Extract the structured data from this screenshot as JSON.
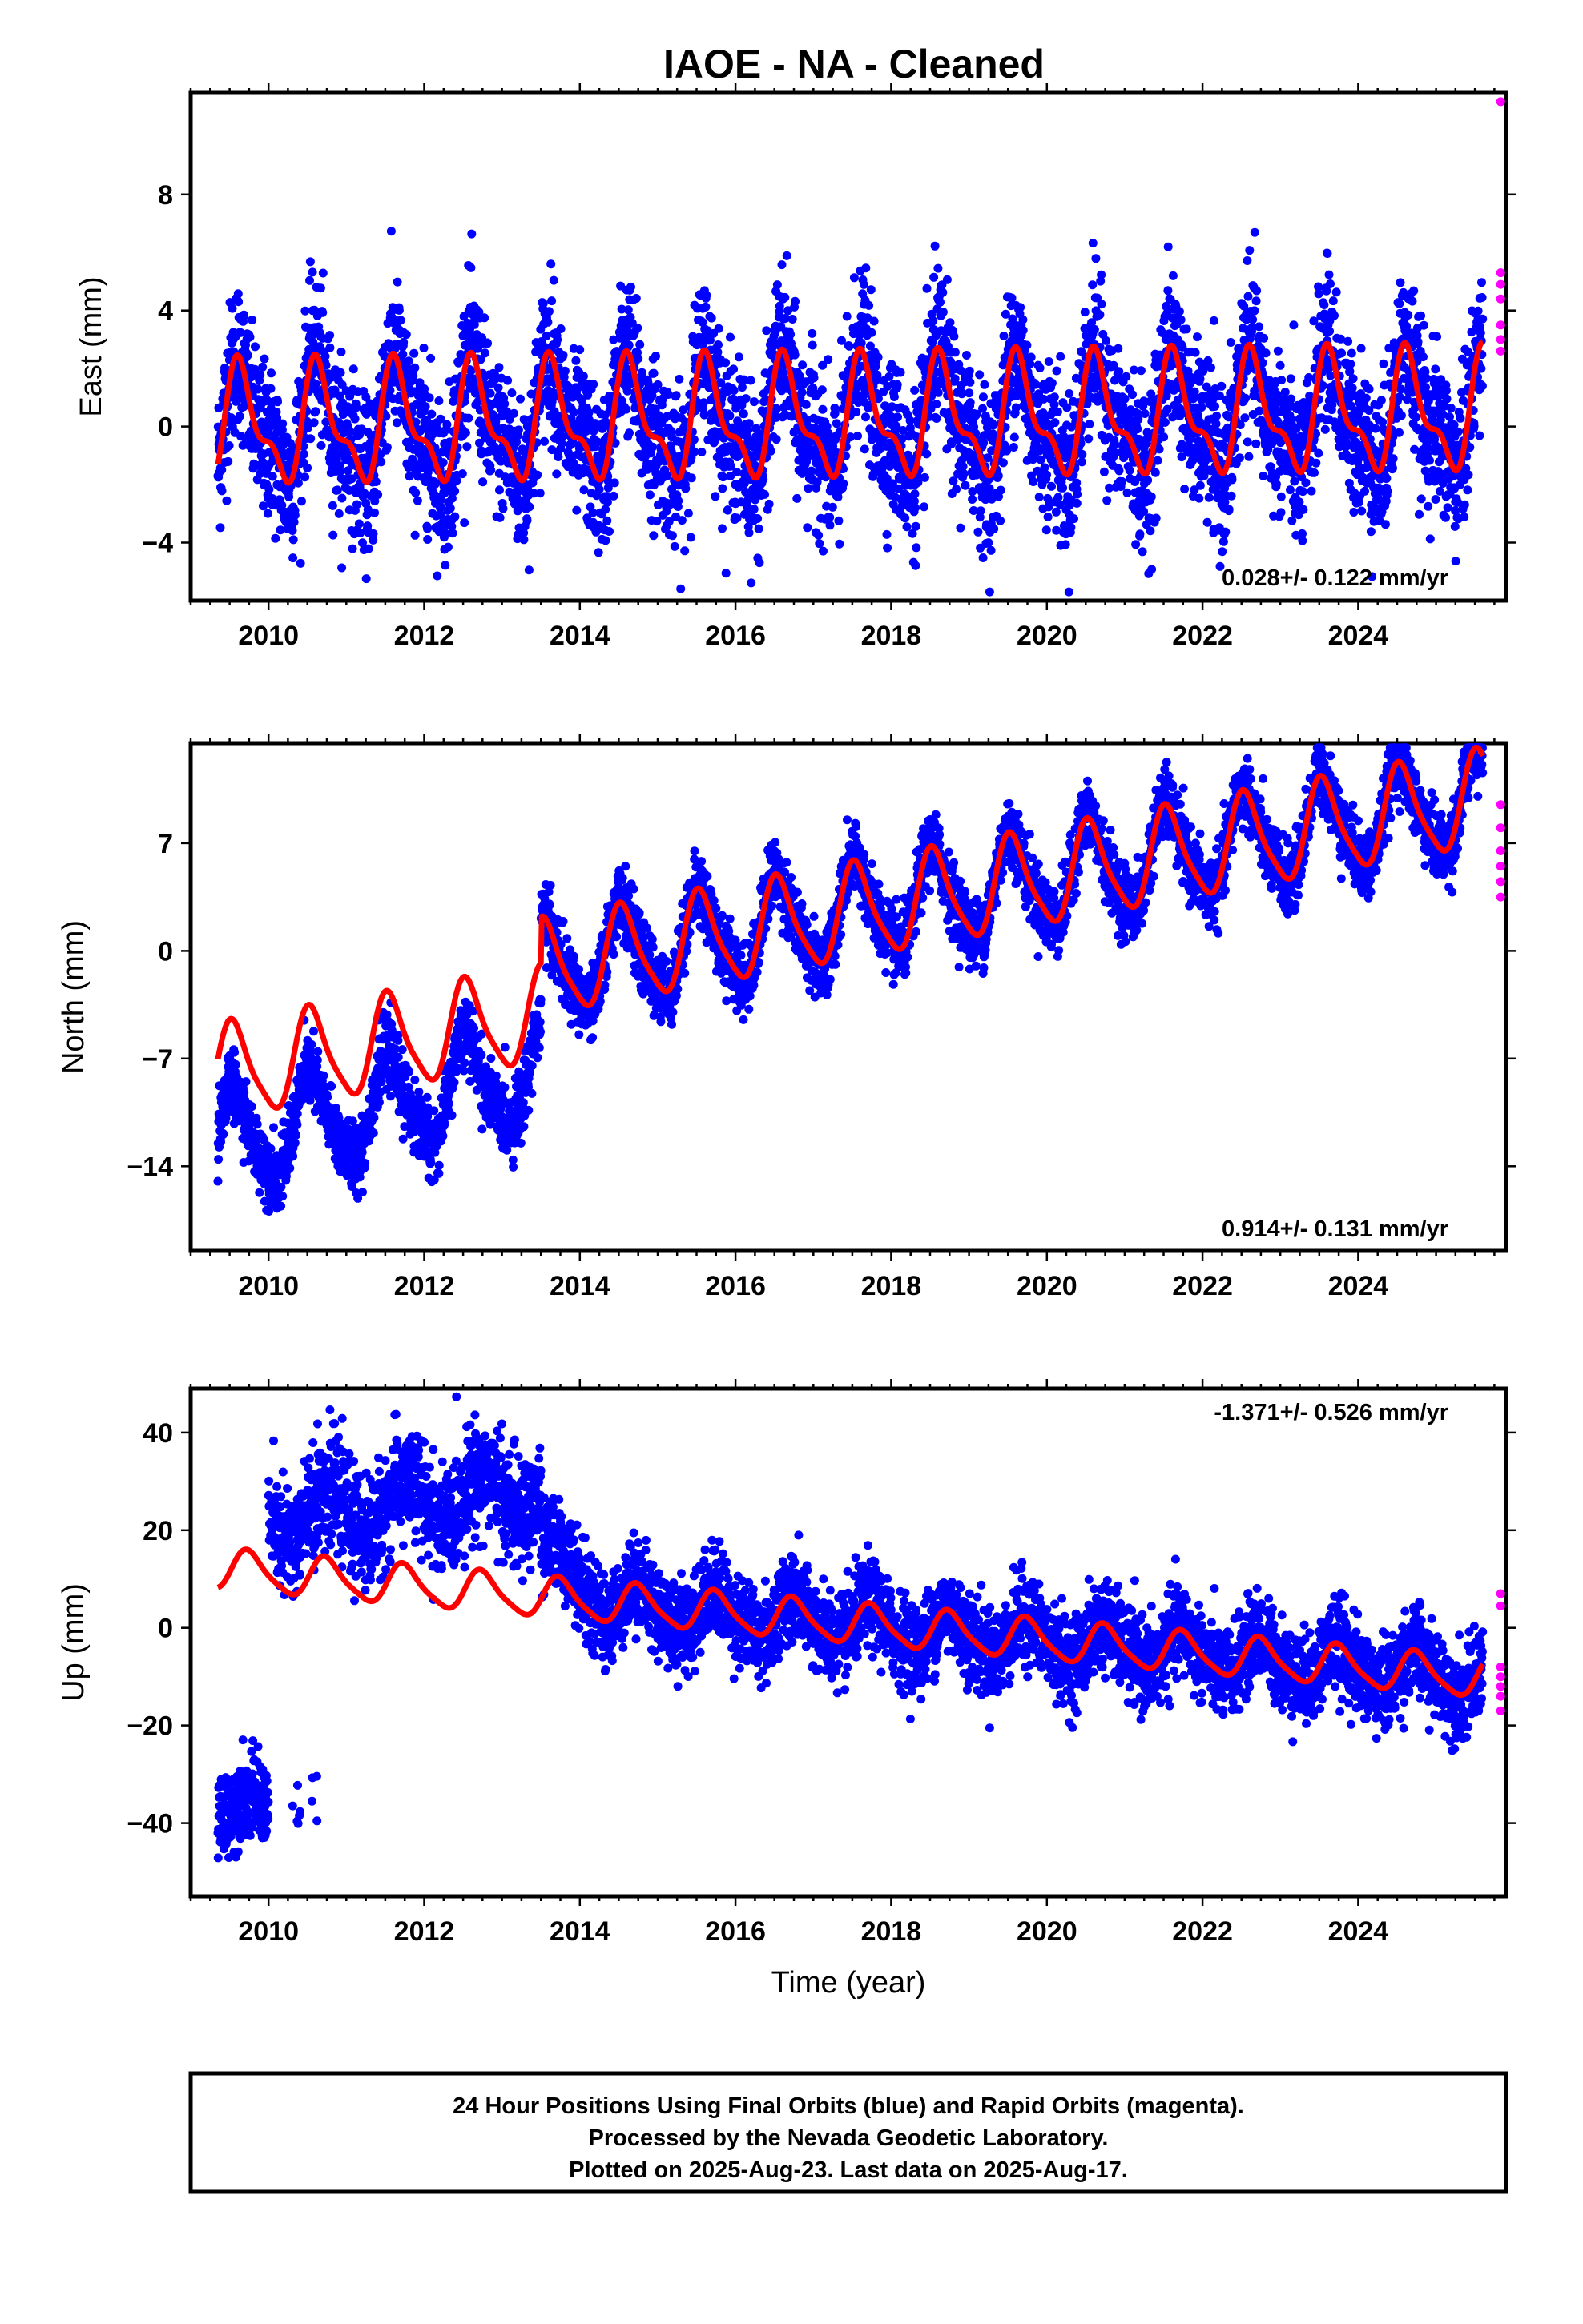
{
  "chart_title": "IAOE  - NA - Cleaned",
  "colors": {
    "final_orbits": "#0000ff",
    "rapid_orbits": "#ff00ff",
    "model_fit": "#ff0000",
    "frame": "#000000"
  },
  "chart_data": [
    {
      "type": "scatter",
      "component": "east",
      "ylabel": "East (mm)",
      "xlim": [
        2009.0,
        2025.9
      ],
      "ylim": [
        -6.0,
        11.5
      ],
      "xticks": [
        2010,
        2012,
        2014,
        2016,
        2018,
        2020,
        2022,
        2024
      ],
      "xtick_labels": [
        "2010",
        "2012",
        "2014",
        "2016",
        "2018",
        "2020",
        "2022",
        "2024"
      ],
      "yticks": [
        -4,
        0,
        4,
        8
      ],
      "ytick_labels": [
        "−4",
        "0",
        "4",
        "8"
      ],
      "rate_label": "0.028+/- 0.122 mm/yr",
      "rate_value": 0.028,
      "rate_sigma": 0.122,
      "data_start": 2009.35,
      "data_end": 2025.6,
      "model": {
        "annual_amplitude": 1.8,
        "annual_phase_peak": 2009.65,
        "semiannual_amplitude": 0.8,
        "offset_at_start": 0.0
      },
      "scatter_stdev": 1.3,
      "rapid_points": [
        11.4,
        5.3,
        4.9,
        4.4,
        3.5,
        3.0,
        2.6
      ]
    },
    {
      "type": "scatter",
      "component": "north",
      "ylabel": "North (mm)",
      "xlim": [
        2009.0,
        2025.9
      ],
      "ylim": [
        -19.5,
        13.5
      ],
      "xticks": [
        2010,
        2012,
        2014,
        2016,
        2018,
        2020,
        2022,
        2024
      ],
      "xtick_labels": [
        "2010",
        "2012",
        "2014",
        "2016",
        "2018",
        "2020",
        "2022",
        "2024"
      ],
      "yticks": [
        -14,
        -7,
        0,
        7
      ],
      "ytick_labels": [
        "−14",
        "−7",
        "0",
        "7"
      ],
      "rate_label": "0.914+/- 0.131 mm/yr",
      "rate_value": 0.914,
      "rate_sigma": 0.131,
      "data_start": 2009.35,
      "data_end": 2025.6,
      "model": {
        "annual_amplitude": 3.0,
        "annual_phase_peak": 2009.55,
        "semiannual_amplitude": 0.6,
        "offset_at_start": -8.0,
        "step_time": 2013.5,
        "step_size": 3.0
      },
      "data_offset_before_step": -4.5,
      "scatter_stdev": 1.1,
      "rapid_points": [
        9.5,
        8.0,
        6.5,
        5.5,
        4.5,
        3.5
      ]
    },
    {
      "type": "scatter",
      "component": "up",
      "ylabel": "Up (mm)",
      "xlabel": "Time (year)",
      "xlim": [
        2009.0,
        2025.9
      ],
      "ylim": [
        -55.0,
        49.0
      ],
      "xticks": [
        2010,
        2012,
        2014,
        2016,
        2018,
        2020,
        2022,
        2024
      ],
      "xtick_labels": [
        "2010",
        "2012",
        "2014",
        "2016",
        "2018",
        "2020",
        "2022",
        "2024"
      ],
      "yticks": [
        -40,
        -20,
        0,
        20,
        40
      ],
      "ytick_labels": [
        "−40",
        "−20",
        "0",
        "20",
        "40"
      ],
      "rate_label": "-1.371+/- 0.526 mm/yr",
      "rate_value": -1.371,
      "rate_sigma": 0.526,
      "data_start": 2009.35,
      "data_end": 2025.6,
      "model": {
        "annual_amplitude": 4.0,
        "annual_phase_peak": 2009.75,
        "semiannual_amplitude": 0.8,
        "offset_at_start": 12.0
      },
      "data_segments": [
        {
          "start": 2009.35,
          "end": 2010.0,
          "level": -37.0
        },
        {
          "start": 2010.25,
          "end": 2010.65,
          "level": -37.0,
          "sparse": true
        },
        {
          "start": 2010.0,
          "end": 2013.5,
          "level": 25.0,
          "upper": true
        }
      ],
      "scatter_stdev": 4.5,
      "rapid_points": [
        7.0,
        4.5,
        -8.0,
        -10.0,
        -12.0,
        -14.0,
        -17.0
      ]
    }
  ],
  "footer": {
    "line1": "24 Hour Positions Using Final Orbits (blue) and Rapid Orbits (magenta).",
    "line2": "Processed by the Nevada Geodetic Laboratory.",
    "line3": "Plotted on 2025-Aug-23. Last data on 2025-Aug-17."
  }
}
